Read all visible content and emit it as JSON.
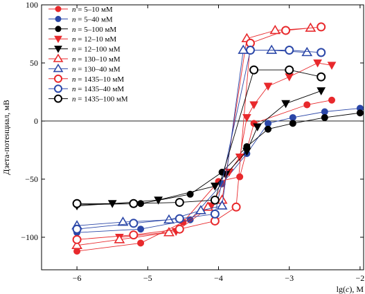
{
  "chart_data": {
    "type": "line",
    "xlabel_prefix": "lg(",
    "xlabel_var": "c",
    "xlabel_suffix": "), M",
    "ylabel": "Дзета-потенциал, мВ",
    "xlim": [
      -6.5,
      -1.95
    ],
    "ylim": [
      -128,
      100
    ],
    "x_ticks": [
      -6,
      -5,
      -4,
      -3,
      -2
    ],
    "x_tick_labels": [
      "−6",
      "−5",
      "−4",
      "−3",
      "−2"
    ],
    "y_ticks": [
      -100,
      -50,
      0,
      50,
      100
    ],
    "y_tick_labels": [
      "−100",
      "−50",
      "0",
      "50",
      "100"
    ],
    "zero_line": true,
    "grid": false,
    "legend_position": "top-left",
    "colors": {
      "red": "#e8292c",
      "blue": "#2b47a8",
      "black": "#000000"
    },
    "series": [
      {
        "name_n": "n",
        "name_rest": " = 5–10 мМ",
        "color": "red",
        "marker": "circle-filled",
        "x": [
          -6.0,
          -5.1,
          -4.5,
          -4.0,
          -3.7,
          -3.5,
          -2.75,
          -2.4
        ],
        "y": [
          -112,
          -105,
          -87,
          -52,
          -48,
          -2,
          14,
          18
        ]
      },
      {
        "name_n": "n",
        "name_rest": " = 5–40 мМ",
        "color": "blue",
        "marker": "circle-filled",
        "x": [
          -6.0,
          -5.1,
          -4.4,
          -3.95,
          -3.6,
          -3.3,
          -2.95,
          -2.5,
          -2.0
        ],
        "y": [
          -96,
          -93,
          -85,
          -54,
          -28,
          -2,
          3,
          8,
          11
        ]
      },
      {
        "name_n": "n",
        "name_rest": " = 5–100 мМ",
        "color": "black",
        "marker": "circle-filled",
        "x": [
          -6.0,
          -5.1,
          -4.4,
          -3.95,
          -3.6,
          -3.3,
          -2.95,
          -2.5,
          -2.0
        ],
        "y": [
          -72,
          -71,
          -63,
          -44,
          -22,
          -7,
          -2,
          3,
          7
        ]
      },
      {
        "name_n": "n",
        "name_rest": " = 12–10 мМ",
        "color": "red",
        "marker": "triangle-down-filled",
        "x": [
          -5.4,
          -4.6,
          -4.1,
          -3.85,
          -3.7,
          -3.6,
          -3.5,
          -3.3,
          -3.0,
          -2.6,
          -2.4
        ],
        "y": [
          -100,
          -95,
          -73,
          -44,
          -31,
          3,
          14,
          30,
          38,
          50,
          48
        ]
      },
      {
        "name_n": "n",
        "name_rest": " = 12–100 мМ",
        "color": "black",
        "marker": "triangle-down-filled",
        "x": [
          -6.0,
          -5.5,
          -4.85,
          -4.05,
          -3.9,
          -3.6,
          -3.45,
          -3.05,
          -2.55
        ],
        "y": [
          -73,
          -71,
          -68,
          -56,
          -46,
          -26,
          -5,
          15,
          26
        ]
      },
      {
        "name_n": "n",
        "name_rest": " = 130–10 мМ",
        "color": "red",
        "marker": "triangle-up-open",
        "x": [
          -6.0,
          -5.4,
          -4.7,
          -4.15,
          -3.95,
          -3.6,
          -3.2,
          -2.7
        ],
        "y": [
          -107,
          -102,
          -96,
          -74,
          -68,
          71,
          78,
          80
        ]
      },
      {
        "name_n": "n",
        "name_rest": " = 130–40 мМ",
        "color": "blue",
        "marker": "triangle-up-open",
        "x": [
          -6.0,
          -5.35,
          -4.7,
          -4.25,
          -3.95,
          -3.65,
          -3.25,
          -2.75
        ],
        "y": [
          -90,
          -87,
          -85,
          -77,
          -73,
          61,
          61,
          59
        ]
      },
      {
        "name_n": "n",
        "name_rest": " = 1435–10 мМ",
        "color": "red",
        "marker": "circle-open",
        "x": [
          -6.0,
          -5.2,
          -4.55,
          -4.05,
          -3.75,
          -3.55,
          -3.05,
          -2.55
        ],
        "y": [
          -102,
          -98,
          -93,
          -86,
          -74,
          67,
          78,
          81
        ]
      },
      {
        "name_n": "n",
        "name_rest": " = 1435–40 мМ",
        "color": "blue",
        "marker": "circle-open",
        "x": [
          -6.0,
          -5.2,
          -4.55,
          -4.05,
          -3.55,
          -3.0,
          -2.55
        ],
        "y": [
          -93,
          -88,
          -84,
          -80,
          61,
          61,
          59
        ]
      },
      {
        "name_n": "n",
        "name_rest": " = 1435–100 мМ",
        "color": "black",
        "marker": "circle-open",
        "x": [
          -6.0,
          -5.2,
          -4.55,
          -4.05,
          -3.5,
          -3.0,
          -2.55
        ],
        "y": [
          -71,
          -71,
          -70,
          -68,
          44,
          44,
          38
        ]
      }
    ]
  }
}
